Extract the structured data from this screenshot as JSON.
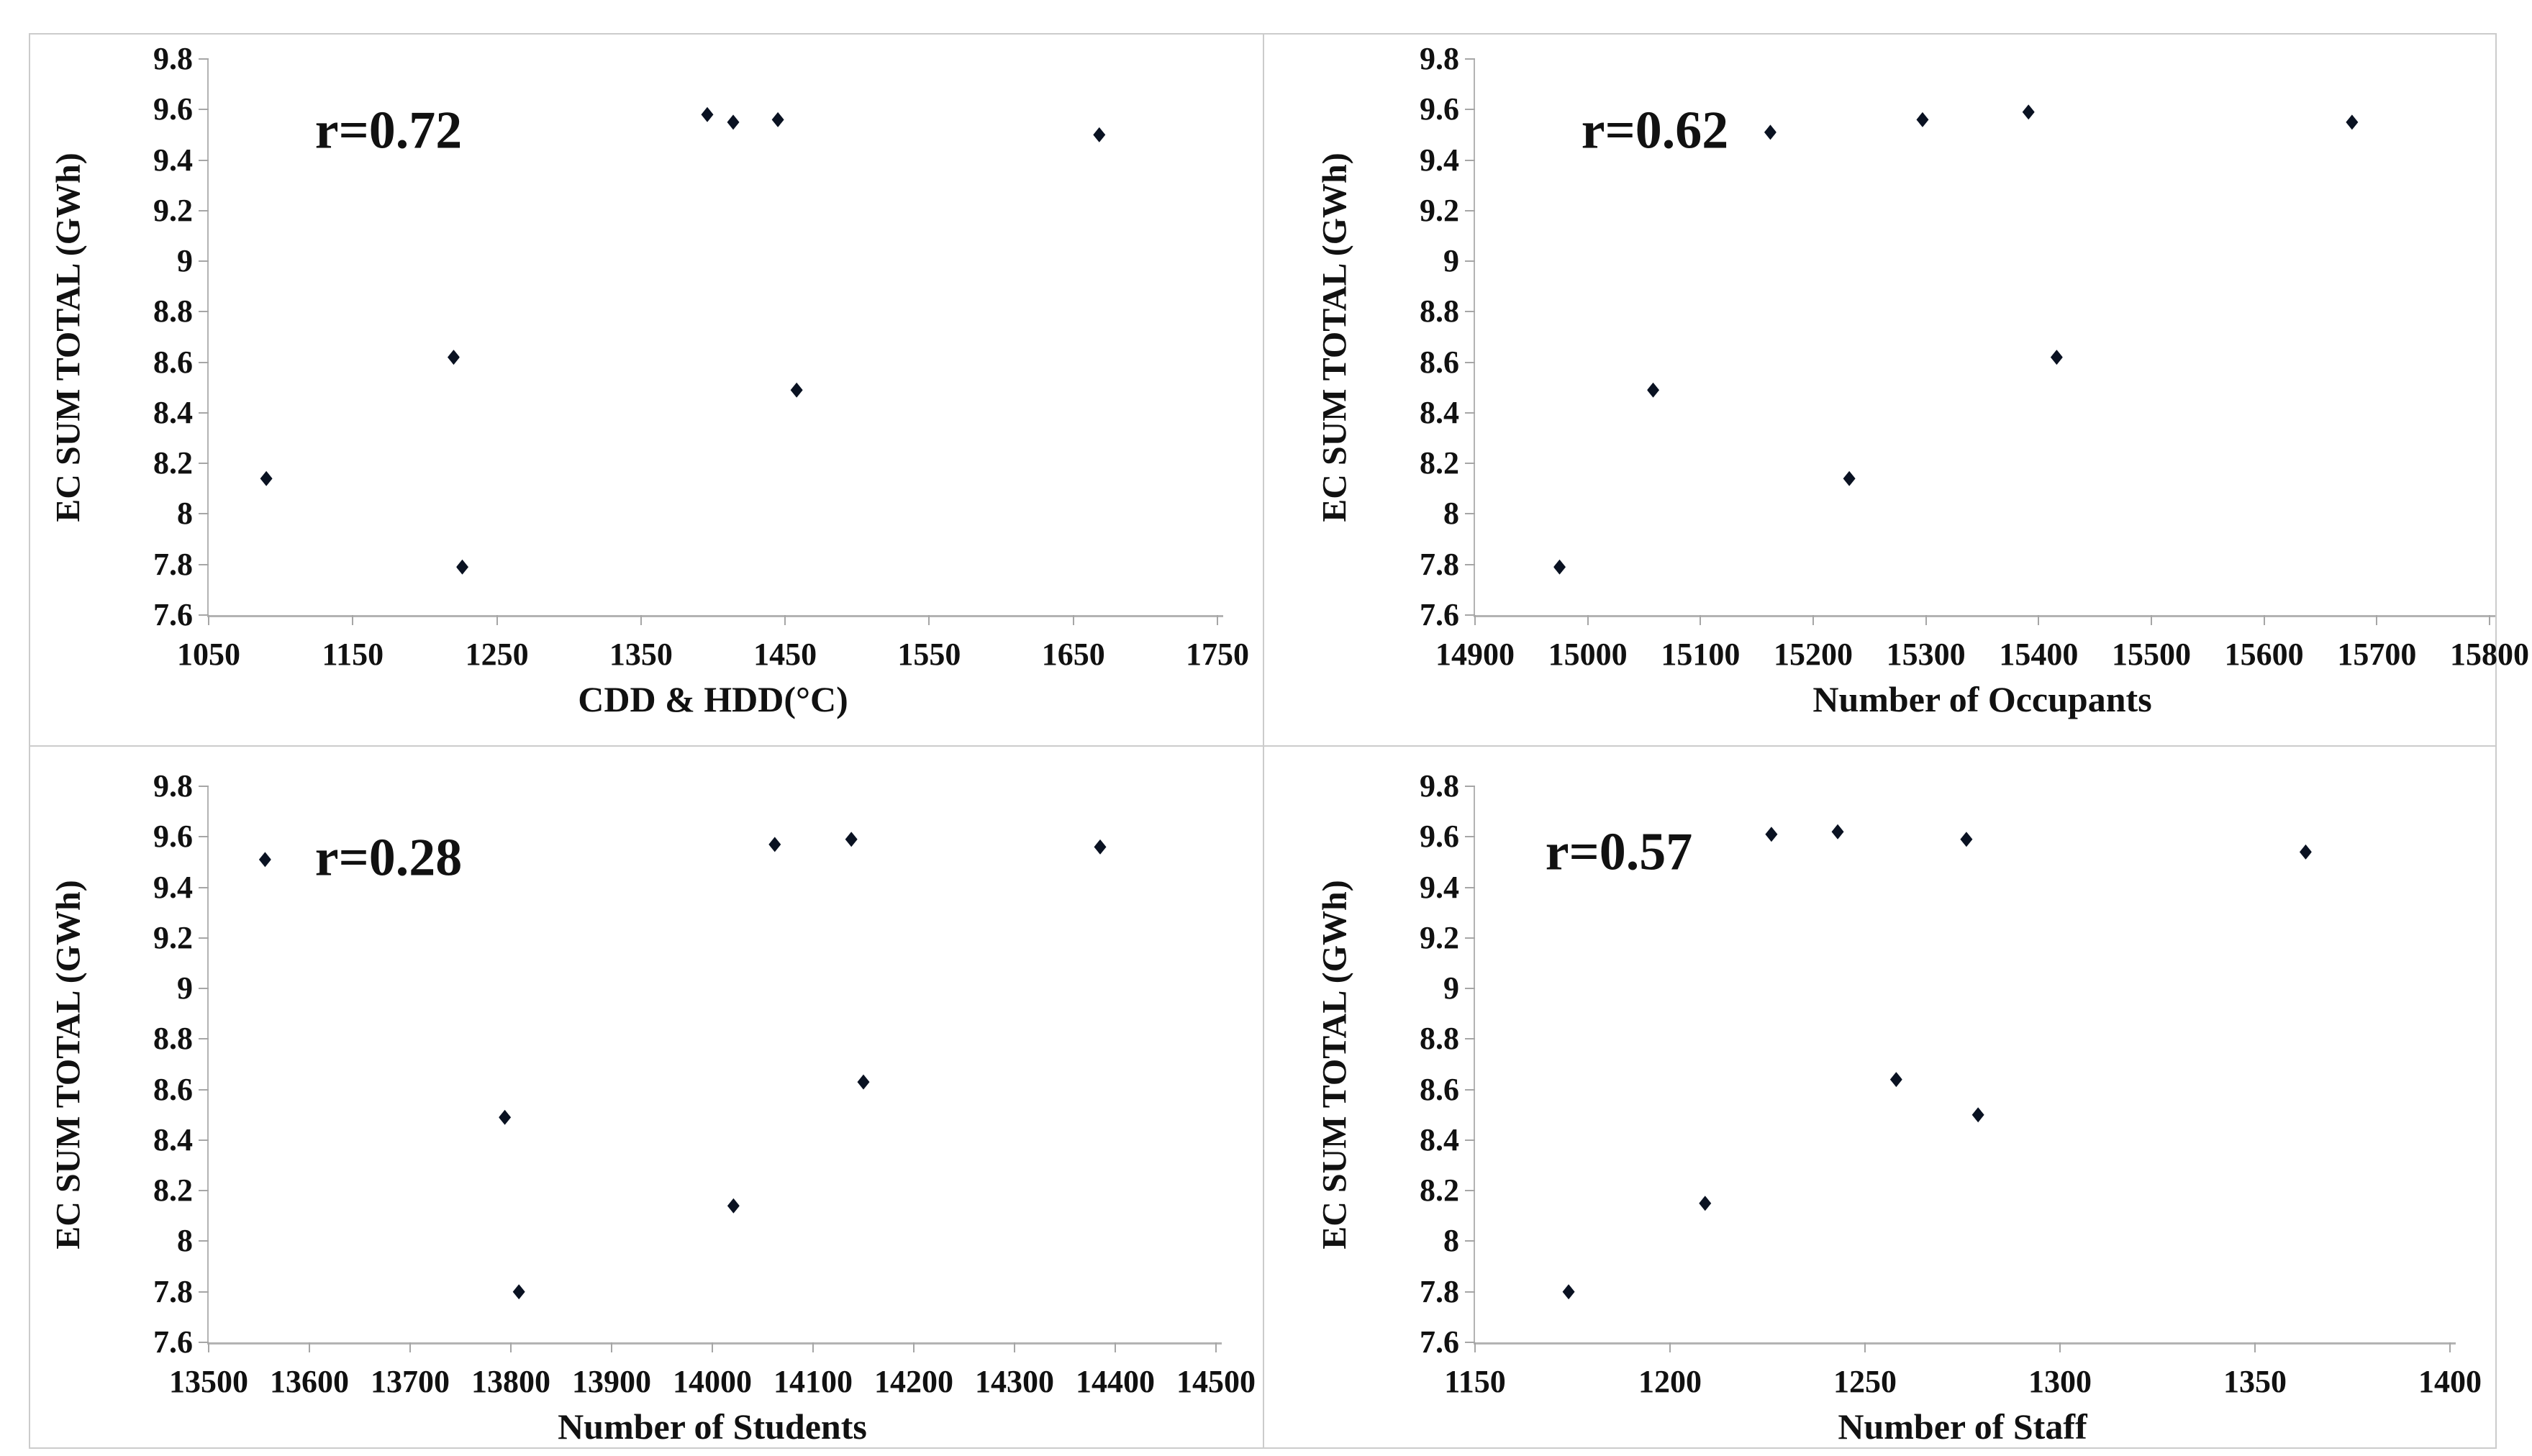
{
  "figure": {
    "layout": "2x2 scatter grid",
    "shared_ylabel": "EC SUM TOTAL (GWh)"
  },
  "style": {
    "marker_color": "#0a1222",
    "axis_line_color": "#b3b3b3",
    "tick_color": "#a6a6a6",
    "text_color": "#111111",
    "frame_border_color": "#cccccc",
    "background": "#ffffff"
  },
  "chart_data": [
    {
      "type": "scatter",
      "annotation": "r=0.72",
      "xlabel": "CDD & HDD(°C)",
      "ylabel": "EC SUM TOTAL (GWh)",
      "xlim": [
        1050,
        1750
      ],
      "ylim": [
        7.6,
        9.8
      ],
      "x_ticks": [
        1050,
        1150,
        1250,
        1350,
        1450,
        1550,
        1650,
        1750
      ],
      "y_ticks": [
        7.6,
        7.8,
        8,
        8.2,
        8.4,
        8.6,
        8.8,
        9,
        9.2,
        9.4,
        9.6,
        9.8
      ],
      "grid": false,
      "legend": "none",
      "points": [
        {
          "x": 1090,
          "y": 8.14
        },
        {
          "x": 1220,
          "y": 8.62
        },
        {
          "x": 1226,
          "y": 7.79
        },
        {
          "x": 1396,
          "y": 9.58
        },
        {
          "x": 1414,
          "y": 9.55
        },
        {
          "x": 1445,
          "y": 9.56
        },
        {
          "x": 1458,
          "y": 8.49
        },
        {
          "x": 1668,
          "y": 9.5
        }
      ]
    },
    {
      "type": "scatter",
      "annotation": "r=0.62",
      "xlabel": "Number of Occupants",
      "ylabel": "EC SUM TOTAL (GWh)",
      "xlim": [
        14900,
        15800
      ],
      "ylim": [
        7.6,
        9.8
      ],
      "x_ticks": [
        14900,
        15000,
        15100,
        15200,
        15300,
        15400,
        15500,
        15600,
        15700,
        15800
      ],
      "y_ticks": [
        7.6,
        7.8,
        8,
        8.2,
        8.4,
        8.6,
        8.8,
        9,
        9.2,
        9.4,
        9.6,
        9.8
      ],
      "grid": false,
      "legend": "none",
      "points": [
        {
          "x": 14975,
          "y": 7.79
        },
        {
          "x": 15058,
          "y": 8.49
        },
        {
          "x": 15162,
          "y": 9.51
        },
        {
          "x": 15232,
          "y": 8.14
        },
        {
          "x": 15297,
          "y": 9.56
        },
        {
          "x": 15391,
          "y": 9.59
        },
        {
          "x": 15416,
          "y": 8.62
        },
        {
          "x": 15678,
          "y": 9.55
        }
      ]
    },
    {
      "type": "scatter",
      "annotation": "r=0.28",
      "xlabel": "Number of Students",
      "ylabel": "EC SUM TOTAL (GWh)",
      "xlim": [
        13500,
        14500
      ],
      "ylim": [
        7.6,
        9.8
      ],
      "x_ticks": [
        13500,
        13600,
        13700,
        13800,
        13900,
        14000,
        14100,
        14200,
        14300,
        14400,
        14500
      ],
      "y_ticks": [
        7.6,
        7.8,
        8,
        8.2,
        8.4,
        8.6,
        8.8,
        9,
        9.2,
        9.4,
        9.6,
        9.8
      ],
      "grid": false,
      "legend": "none",
      "points": [
        {
          "x": 13556,
          "y": 9.51
        },
        {
          "x": 13794,
          "y": 8.49
        },
        {
          "x": 13808,
          "y": 7.8
        },
        {
          "x": 14021,
          "y": 8.14
        },
        {
          "x": 14062,
          "y": 9.57
        },
        {
          "x": 14138,
          "y": 9.59
        },
        {
          "x": 14150,
          "y": 8.63
        },
        {
          "x": 14385,
          "y": 9.56
        }
      ]
    },
    {
      "type": "scatter",
      "annotation": "r=0.57",
      "xlabel": "Number of Staff",
      "ylabel": "EC SUM TOTAL (GWh)",
      "xlim": [
        1150,
        1400
      ],
      "ylim": [
        7.6,
        9.8
      ],
      "x_ticks": [
        1150,
        1200,
        1250,
        1300,
        1350,
        1400
      ],
      "y_ticks": [
        7.6,
        7.8,
        8,
        8.2,
        8.4,
        8.6,
        8.8,
        9,
        9.2,
        9.4,
        9.6,
        9.8
      ],
      "grid": false,
      "legend": "none",
      "points": [
        {
          "x": 1174,
          "y": 7.8
        },
        {
          "x": 1209,
          "y": 8.15
        },
        {
          "x": 1226,
          "y": 9.61
        },
        {
          "x": 1243,
          "y": 9.62
        },
        {
          "x": 1258,
          "y": 8.64
        },
        {
          "x": 1276,
          "y": 9.59
        },
        {
          "x": 1279,
          "y": 8.5
        },
        {
          "x": 1363,
          "y": 9.54
        }
      ]
    }
  ]
}
